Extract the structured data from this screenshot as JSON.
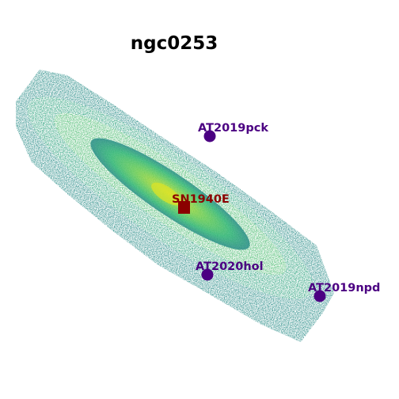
{
  "title": "ngc0253",
  "colors": {
    "background": "#ffffff",
    "galaxy_low": "#2a8d88",
    "galaxy_mid": "#5cc063",
    "galaxy_high": "#b7dd29",
    "galaxy_core": "#e5e419",
    "marker_purple": "#4b0082",
    "marker_darkred": "#8b0000"
  },
  "markers": [
    {
      "name": "AT2019pck",
      "shape": "circle",
      "color": "#4b0082"
    },
    {
      "name": "SN1940E",
      "shape": "square",
      "color": "#8b0000"
    },
    {
      "name": "AT2020hol",
      "shape": "circle",
      "color": "#4b0082"
    },
    {
      "name": "AT2019npd",
      "shape": "circle",
      "color": "#4b0082"
    }
  ]
}
